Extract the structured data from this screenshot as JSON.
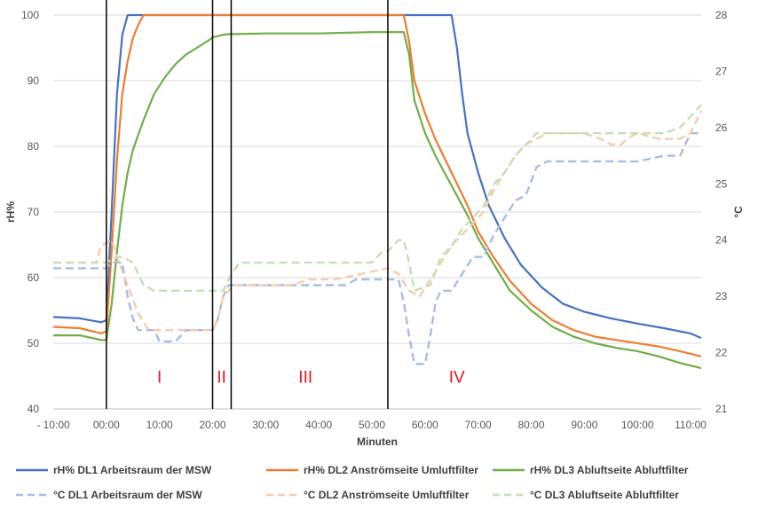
{
  "chart_data": {
    "type": "line",
    "xlabel": "Minuten",
    "ylabel_left": "rH%",
    "ylabel_right": "°C",
    "xlim": [
      -10,
      112
    ],
    "ylim_left": [
      40,
      100
    ],
    "ylim_right": [
      21,
      28
    ],
    "x_ticks": [
      -10,
      0,
      10,
      20,
      30,
      40,
      50,
      60,
      70,
      80,
      90,
      100,
      110
    ],
    "x_tick_labels": [
      "- 10:00",
      "00:00",
      "10:00",
      "20:00",
      "30:00",
      "40:00",
      "50:00",
      "60:00",
      "70:00",
      "80:00",
      "90:00",
      "100:00",
      "110:00"
    ],
    "y_left_ticks": [
      40,
      50,
      60,
      70,
      80,
      90,
      100
    ],
    "y_right_ticks": [
      21,
      22,
      23,
      24,
      25,
      26,
      27,
      28
    ],
    "grid": true,
    "legend_position": "bottom",
    "phase_lines": [
      0,
      20,
      23.5,
      53
    ],
    "phase_labels": [
      {
        "text": "I",
        "x": 10,
        "y": 44.8
      },
      {
        "text": "II",
        "x": 21.7,
        "y": 44.8
      },
      {
        "text": "III",
        "x": 37.5,
        "y": 44.8
      },
      {
        "text": "IV",
        "x": 66,
        "y": 44.8
      }
    ],
    "series": [
      {
        "name": "rH% DL1 Arbeitsraum der MSW",
        "axis": "left",
        "color": "#4472c4",
        "dash": "solid",
        "points": [
          [
            -10,
            54
          ],
          [
            -5,
            53.8
          ],
          [
            -1,
            53.2
          ],
          [
            0,
            53.5
          ],
          [
            1,
            70
          ],
          [
            2,
            88
          ],
          [
            3,
            97
          ],
          [
            4,
            100
          ],
          [
            64,
            100
          ],
          [
            65,
            100
          ],
          [
            66,
            95
          ],
          [
            67,
            88
          ],
          [
            68,
            82
          ],
          [
            70,
            76
          ],
          [
            72,
            71
          ],
          [
            75,
            66
          ],
          [
            78,
            62
          ],
          [
            82,
            58.5
          ],
          [
            86,
            56
          ],
          [
            90,
            54.8
          ],
          [
            95,
            53.8
          ],
          [
            100,
            53
          ],
          [
            105,
            52.3
          ],
          [
            110,
            51.5
          ],
          [
            112,
            50.8
          ]
        ]
      },
      {
        "name": "rH% DL2 Anströmseite Umluftfilter",
        "axis": "left",
        "color": "#ed7d31",
        "dash": "solid",
        "points": [
          [
            -10,
            52.5
          ],
          [
            -5,
            52.3
          ],
          [
            -1,
            51.5
          ],
          [
            0,
            51.8
          ],
          [
            1,
            64
          ],
          [
            2,
            78
          ],
          [
            3,
            88
          ],
          [
            4,
            93
          ],
          [
            5,
            96.5
          ],
          [
            6,
            98.5
          ],
          [
            7,
            100
          ],
          [
            56,
            100
          ],
          [
            57,
            96
          ],
          [
            58,
            90
          ],
          [
            60,
            85
          ],
          [
            62,
            81
          ],
          [
            65,
            76
          ],
          [
            68,
            71
          ],
          [
            70,
            67
          ],
          [
            73,
            63
          ],
          [
            76,
            59.5
          ],
          [
            80,
            56
          ],
          [
            84,
            53.5
          ],
          [
            88,
            52
          ],
          [
            92,
            51
          ],
          [
            96,
            50.5
          ],
          [
            100,
            50
          ],
          [
            104,
            49.5
          ],
          [
            108,
            48.8
          ],
          [
            112,
            48
          ]
        ]
      },
      {
        "name": "rH% DL3 Abluftseite Abluftfilter",
        "axis": "left",
        "color": "#70ad47",
        "dash": "solid",
        "points": [
          [
            -10,
            51.2
          ],
          [
            -5,
            51.2
          ],
          [
            -1,
            50.5
          ],
          [
            0,
            50.5
          ],
          [
            1,
            56
          ],
          [
            2,
            64
          ],
          [
            3,
            71
          ],
          [
            4,
            76
          ],
          [
            5,
            79.5
          ],
          [
            7,
            84
          ],
          [
            9,
            88
          ],
          [
            11,
            90.5
          ],
          [
            13,
            92.5
          ],
          [
            15,
            94
          ],
          [
            17,
            95
          ],
          [
            19,
            96
          ],
          [
            20,
            96.6
          ],
          [
            22,
            97
          ],
          [
            23,
            97.1
          ],
          [
            30,
            97.2
          ],
          [
            40,
            97.2
          ],
          [
            50,
            97.4
          ],
          [
            56,
            97.4
          ],
          [
            57,
            94
          ],
          [
            58,
            87
          ],
          [
            60,
            82
          ],
          [
            62,
            78.5
          ],
          [
            65,
            74
          ],
          [
            68,
            69.5
          ],
          [
            70,
            66
          ],
          [
            73,
            62
          ],
          [
            76,
            58
          ],
          [
            80,
            55
          ],
          [
            84,
            52.5
          ],
          [
            88,
            51
          ],
          [
            92,
            50
          ],
          [
            96,
            49.3
          ],
          [
            100,
            48.8
          ],
          [
            104,
            48
          ],
          [
            108,
            47
          ],
          [
            112,
            46.2
          ]
        ]
      },
      {
        "name": "°C DL1 Arbeitsraum der MSW",
        "axis": "right",
        "color": "#a5bde6",
        "dash": "dashed",
        "points": [
          [
            -10,
            23.5
          ],
          [
            -1,
            23.5
          ],
          [
            0,
            23.5
          ],
          [
            1,
            23.6
          ],
          [
            3,
            23.6
          ],
          [
            4,
            23.0
          ],
          [
            5,
            22.6
          ],
          [
            6,
            22.4
          ],
          [
            9,
            22.4
          ],
          [
            10,
            22.2
          ],
          [
            13,
            22.2
          ],
          [
            15,
            22.4
          ],
          [
            20,
            22.4
          ],
          [
            21,
            22.6
          ],
          [
            22,
            23.0
          ],
          [
            23,
            23.2
          ],
          [
            24,
            23.2
          ],
          [
            40,
            23.2
          ],
          [
            45,
            23.2
          ],
          [
            47,
            23.3
          ],
          [
            53,
            23.3
          ],
          [
            55,
            23.3
          ],
          [
            56,
            22.9
          ],
          [
            57,
            22.3
          ],
          [
            58,
            21.8
          ],
          [
            60,
            21.8
          ],
          [
            61,
            22.3
          ],
          [
            62,
            22.9
          ],
          [
            63,
            23.1
          ],
          [
            65,
            23.1
          ],
          [
            67,
            23.4
          ],
          [
            69,
            23.7
          ],
          [
            71,
            23.7
          ],
          [
            73,
            24.1
          ],
          [
            75,
            24.4
          ],
          [
            77,
            24.7
          ],
          [
            79,
            24.8
          ],
          [
            81,
            25.3
          ],
          [
            83,
            25.4
          ],
          [
            85,
            25.4
          ],
          [
            87,
            25.4
          ],
          [
            90,
            25.4
          ],
          [
            94,
            25.4
          ],
          [
            96,
            25.4
          ],
          [
            100,
            25.4
          ],
          [
            105,
            25.5
          ],
          [
            108,
            25.5
          ],
          [
            110,
            25.9
          ],
          [
            112,
            25.9
          ]
        ]
      },
      {
        "name": "°C DL2 Anströmseite Umluftfilter",
        "axis": "right",
        "color": "#f8cbad",
        "dash": "dashed",
        "points": [
          [
            -10,
            23.6
          ],
          [
            -2,
            23.6
          ],
          [
            -1,
            23.9
          ],
          [
            1,
            24.0
          ],
          [
            2,
            23.7
          ],
          [
            4,
            23.2
          ],
          [
            6,
            22.7
          ],
          [
            8,
            22.4
          ],
          [
            20,
            22.4
          ],
          [
            21,
            22.6
          ],
          [
            22,
            23.0
          ],
          [
            24,
            23.2
          ],
          [
            35,
            23.2
          ],
          [
            38,
            23.3
          ],
          [
            43,
            23.3
          ],
          [
            48,
            23.4
          ],
          [
            53,
            23.5
          ],
          [
            55,
            23.4
          ],
          [
            57,
            23.1
          ],
          [
            59,
            23.0
          ],
          [
            61,
            23.3
          ],
          [
            63,
            23.6
          ],
          [
            65,
            23.9
          ],
          [
            67,
            24.1
          ],
          [
            69,
            24.3
          ],
          [
            71,
            24.5
          ],
          [
            73,
            24.9
          ],
          [
            75,
            25.2
          ],
          [
            77,
            25.5
          ],
          [
            79,
            25.7
          ],
          [
            81,
            25.8
          ],
          [
            83,
            25.9
          ],
          [
            90,
            25.9
          ],
          [
            93,
            25.8
          ],
          [
            95,
            25.7
          ],
          [
            97,
            25.7
          ],
          [
            98,
            25.8
          ],
          [
            100,
            25.9
          ],
          [
            104,
            25.8
          ],
          [
            108,
            25.8
          ],
          [
            110,
            25.9
          ],
          [
            112,
            26.3
          ]
        ]
      },
      {
        "name": "°C DL3 Abluftseite Abluftfilter",
        "axis": "right",
        "color": "#c5e0b4",
        "dash": "dashed",
        "points": [
          [
            -10,
            23.6
          ],
          [
            -1,
            23.6
          ],
          [
            0,
            23.6
          ],
          [
            2,
            23.7
          ],
          [
            3,
            23.7
          ],
          [
            5,
            23.6
          ],
          [
            7,
            23.2
          ],
          [
            9,
            23.1
          ],
          [
            22,
            23.1
          ],
          [
            23,
            23.3
          ],
          [
            25,
            23.6
          ],
          [
            40,
            23.6
          ],
          [
            50,
            23.6
          ],
          [
            52,
            23.8
          ],
          [
            53,
            23.8
          ],
          [
            55,
            24.0
          ],
          [
            56,
            24.0
          ],
          [
            57,
            23.6
          ],
          [
            58,
            23.1
          ],
          [
            61,
            23.2
          ],
          [
            63,
            23.7
          ],
          [
            65,
            23.9
          ],
          [
            67,
            24.2
          ],
          [
            69,
            24.4
          ],
          [
            71,
            24.6
          ],
          [
            73,
            25.0
          ],
          [
            75,
            25.2
          ],
          [
            77,
            25.5
          ],
          [
            79,
            25.7
          ],
          [
            81,
            25.9
          ],
          [
            83,
            25.9
          ],
          [
            90,
            25.9
          ],
          [
            100,
            25.9
          ],
          [
            105,
            25.9
          ],
          [
            108,
            26.0
          ],
          [
            110,
            26.2
          ],
          [
            112,
            26.4
          ]
        ]
      }
    ]
  }
}
